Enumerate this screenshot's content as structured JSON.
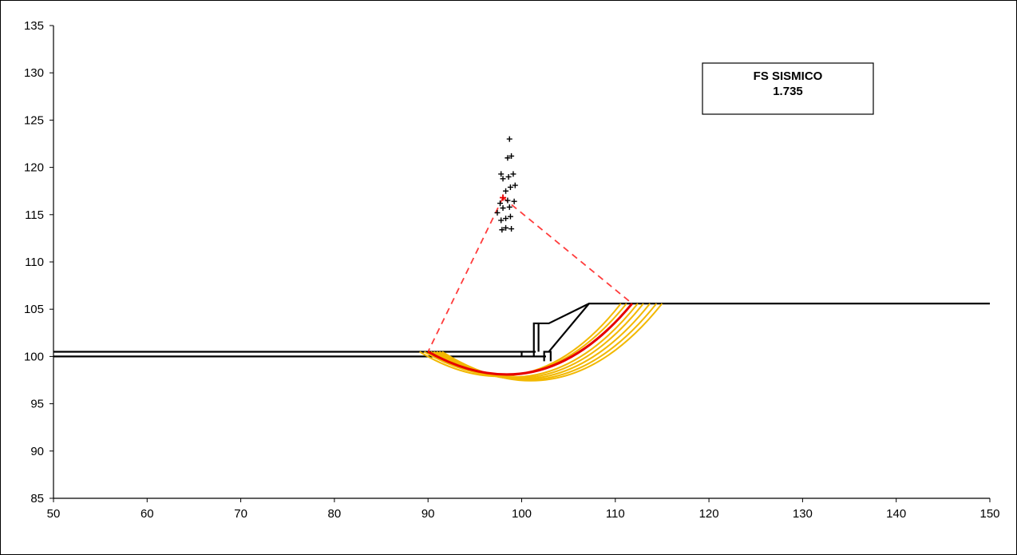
{
  "chart_data": {
    "type": "scatter",
    "xlim": [
      50,
      150
    ],
    "ylim": [
      85,
      135
    ],
    "x_ticks": [
      "50",
      "60",
      "70",
      "80",
      "90",
      "100",
      "110",
      "120",
      "130",
      "140",
      "150"
    ],
    "y_ticks": [
      "85",
      "90",
      "95",
      "100",
      "105",
      "110",
      "115",
      "120",
      "125",
      "130",
      "135"
    ],
    "grid": false,
    "annotation": {
      "title": "FS  SISMICO",
      "value": "1.735"
    },
    "colors": {
      "axis": "#000000",
      "geometry": "#000000",
      "critical_surface": "#e60000",
      "trial_surfaces": "#f2b800",
      "radius_lines": "#ff3b3b",
      "centers": "#000000"
    },
    "geometry": [
      {
        "name": "ground-upper-line",
        "points": [
          [
            50,
            100.5
          ],
          [
            101.5,
            100.5
          ]
        ]
      },
      {
        "name": "ground-lower-line",
        "points": [
          [
            50,
            100.0
          ],
          [
            102.6,
            100.0
          ]
        ]
      },
      {
        "name": "retaining-wall",
        "points": [
          [
            101.3,
            100.0
          ],
          [
            101.3,
            103.5
          ],
          [
            102.9,
            103.5
          ],
          [
            107.2,
            105.6
          ],
          [
            150,
            105.6
          ]
        ]
      },
      {
        "name": "wall-stem",
        "points": [
          [
            101.8,
            100.5
          ],
          [
            101.8,
            103.5
          ]
        ]
      },
      {
        "name": "slope-face",
        "points": [
          [
            102.9,
            100.5
          ],
          [
            107.2,
            105.6
          ]
        ]
      },
      {
        "name": "toe-block",
        "points": [
          [
            102.4,
            99.5
          ],
          [
            102.4,
            100.5
          ],
          [
            103.1,
            100.5
          ],
          [
            103.1,
            99.5
          ]
        ]
      },
      {
        "name": "small-step",
        "points": [
          [
            100,
            100.0
          ],
          [
            100,
            100.5
          ]
        ]
      }
    ],
    "critical_center": [
      98.0,
      116.8
    ],
    "critical_circle": {
      "start": [
        90.0,
        100.5
      ],
      "end": [
        111.8,
        105.6
      ],
      "bottom_y": 98.7
    },
    "trial_surfaces": [
      {
        "start": [
          89.1,
          100.5
        ],
        "end": [
          110.6,
          105.6
        ],
        "bottom_y": 98.5
      },
      {
        "start": [
          89.6,
          100.5
        ],
        "end": [
          111.2,
          105.6
        ],
        "bottom_y": 98.6
      },
      {
        "start": [
          90.3,
          100.5
        ],
        "end": [
          112.4,
          105.6
        ],
        "bottom_y": 98.4
      },
      {
        "start": [
          90.6,
          100.5
        ],
        "end": [
          113.0,
          105.6
        ],
        "bottom_y": 98.3
      },
      {
        "start": [
          90.9,
          100.5
        ],
        "end": [
          113.7,
          105.6
        ],
        "bottom_y": 98.2
      },
      {
        "start": [
          91.2,
          100.5
        ],
        "end": [
          114.4,
          105.6
        ],
        "bottom_y": 98.1
      },
      {
        "start": [
          91.5,
          100.5
        ],
        "end": [
          115.0,
          105.6
        ],
        "bottom_y": 98.0
      }
    ],
    "search_centers": [
      [
        98.7,
        123.0
      ],
      [
        98.5,
        121.0
      ],
      [
        98.9,
        121.2
      ],
      [
        97.8,
        119.3
      ],
      [
        98.6,
        119.0
      ],
      [
        99.1,
        119.3
      ],
      [
        98.0,
        118.8
      ],
      [
        98.3,
        117.5
      ],
      [
        98.8,
        117.9
      ],
      [
        99.3,
        118.1
      ],
      [
        97.7,
        116.2
      ],
      [
        98.5,
        116.5
      ],
      [
        99.2,
        116.4
      ],
      [
        97.4,
        115.2
      ],
      [
        98.0,
        115.7
      ],
      [
        98.7,
        115.8
      ],
      [
        97.8,
        114.4
      ],
      [
        98.3,
        114.6
      ],
      [
        98.8,
        114.8
      ],
      [
        97.9,
        113.4
      ],
      [
        98.3,
        113.6
      ],
      [
        98.9,
        113.5
      ]
    ]
  }
}
